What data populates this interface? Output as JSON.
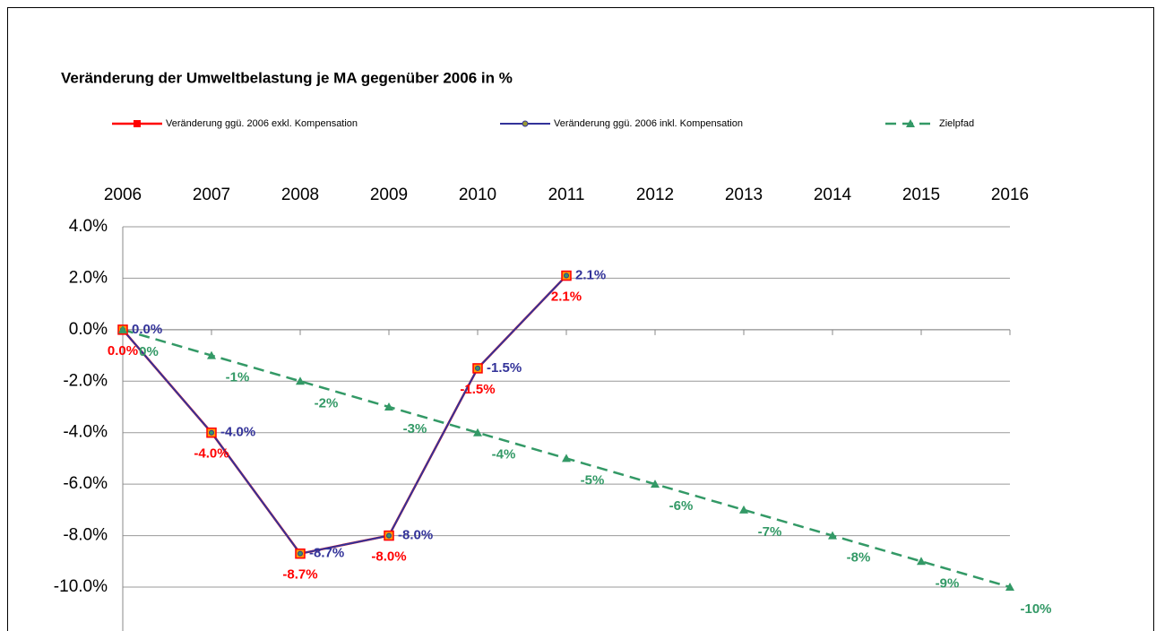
{
  "chart_data": {
    "type": "line",
    "title": "Veränderung der Umweltbelastung je MA gegenüber 2006 in %",
    "categories": [
      "2006",
      "2007",
      "2008",
      "2009",
      "2010",
      "2011",
      "2012",
      "2013",
      "2014",
      "2015",
      "2016"
    ],
    "ylim": [
      -12,
      4
    ],
    "yticks": [
      {
        "value": 4,
        "label": "4.0%"
      },
      {
        "value": 2,
        "label": "2.0%"
      },
      {
        "value": 0,
        "label": "0.0%"
      },
      {
        "value": -2,
        "label": "-2.0%"
      },
      {
        "value": -4,
        "label": "-4.0%"
      },
      {
        "value": -6,
        "label": "-6.0%"
      },
      {
        "value": -8,
        "label": "-8.0%"
      },
      {
        "value": -10,
        "label": "-10.0%"
      }
    ],
    "grid": true,
    "legend": "top",
    "series": [
      {
        "name": "Veränderung ggü. 2006 exkl. Kompensation",
        "color": "#ff0000",
        "values": [
          0,
          -4,
          -8.7,
          -8,
          -1.5,
          2.1,
          null,
          null,
          null,
          null,
          null
        ],
        "value_labels": [
          "0.0%",
          "-4.0%",
          "-8.7%",
          "-8.0%",
          "-1.5%",
          "2.1%",
          null,
          null,
          null,
          null,
          null
        ]
      },
      {
        "name": "Veränderung ggü. 2006 inkl. Kompensation",
        "color": "#333399",
        "values": [
          0,
          -4,
          -8.7,
          -8,
          -1.5,
          2.1,
          null,
          null,
          null,
          null,
          null
        ],
        "value_labels": [
          "0.0%",
          "-4.0%",
          "-8.7%",
          "-8.0%",
          "-1.5%",
          "2.1%",
          null,
          null,
          null,
          null,
          null
        ]
      },
      {
        "name": "Zielpfad",
        "color": "#339966",
        "values": [
          0,
          -1,
          -2,
          -3,
          -4,
          -5,
          -6,
          -7,
          -8,
          -9,
          -10
        ],
        "value_labels": [
          "0%",
          "-1%",
          "-2%",
          "-3%",
          "-4%",
          "-5%",
          "-6%",
          "-7%",
          "-8%",
          "-9%",
          "-10%"
        ]
      }
    ]
  }
}
